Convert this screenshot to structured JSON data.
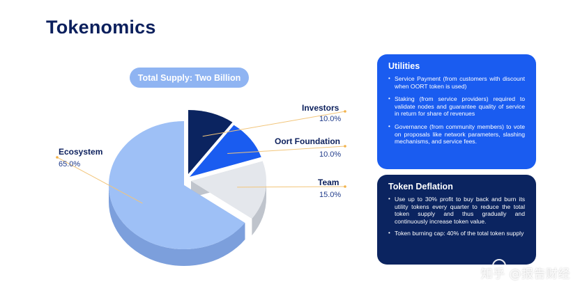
{
  "title": "Tokenomics",
  "supply_label": "Total Supply: Two Billion",
  "chart_data": {
    "type": "pie",
    "title": "",
    "slices": [
      {
        "label": "Investors",
        "value": 10.0,
        "display": "10.0%",
        "color": "#0b2460"
      },
      {
        "label": "Oort Foundation",
        "value": 10.0,
        "display": "10.0%",
        "color": "#1a5cf0"
      },
      {
        "label": "Team",
        "value": 15.0,
        "display": "15.0%",
        "color": "#e4e7ec"
      },
      {
        "label": "Ecosystem",
        "value": 65.0,
        "display": "65.0%",
        "color": "#9ec0f6"
      }
    ]
  },
  "utilities": {
    "heading": "Utilities",
    "items": [
      "Service Payment (from customers with discount when OORT token is used)",
      "Staking (from service providers) required to validate nodes and guarantee quality of service in return for share of revenues",
      "Governance (from community members) to vote on proposals like network parameters, slashing mechanisms, and service fees."
    ]
  },
  "deflation": {
    "heading": "Token Deflation",
    "items": [
      "Use up to 30% profit to buy back and burn its utility tokens every quarter to reduce the total token supply and thus gradually and continuously increase token value.",
      "Token burning cap: 40% of the total token supply"
    ]
  },
  "watermark": "知乎 @报告财经"
}
